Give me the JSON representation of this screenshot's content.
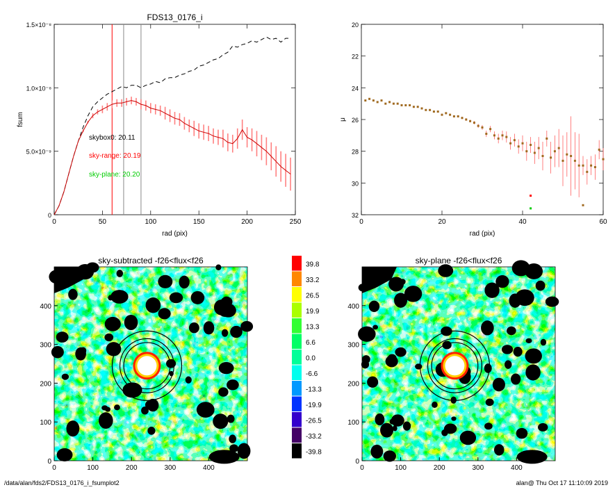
{
  "chart_data": [
    {
      "type": "line",
      "title": "FDS13_0176_i",
      "xlabel": "rad (pix)",
      "ylabel": "fsum",
      "xlim": [
        0,
        250
      ],
      "ylim": [
        0,
        1.5e-08
      ],
      "x_ticks": [
        0,
        50,
        100,
        150,
        200,
        250
      ],
      "y_ticks": [
        {
          "value": 0,
          "label": "0"
        },
        {
          "value": 5e-09,
          "label": "5.0×10⁻⁹"
        },
        {
          "value": 1e-08,
          "label": "1.0×10⁻⁸"
        },
        {
          "value": 1.5e-08,
          "label": "1.5×10⁻⁸"
        }
      ],
      "vlines": [
        {
          "x": 60,
          "color": "#ff0000"
        },
        {
          "x": 72,
          "color": "#888888"
        },
        {
          "x": 90,
          "color": "#888888"
        }
      ],
      "annotations": [
        {
          "text": "skybox0: 20.11",
          "color": "#000000",
          "x": 36,
          "y": 5.9e-09
        },
        {
          "text": "sky-range: 20.19",
          "color": "#ff0000",
          "x": 36,
          "y": 4.5e-09
        },
        {
          "text": "sky-plane: 20.20",
          "color": "#00cc00",
          "x": 36,
          "y": 3e-09
        }
      ],
      "series": [
        {
          "style": "dashed",
          "color": "#000000",
          "x": [
            0,
            5,
            10,
            15,
            20,
            25,
            30,
            35,
            40,
            45,
            50,
            55,
            60,
            65,
            70,
            75,
            80,
            85,
            90,
            95,
            100,
            105,
            110,
            115,
            120,
            125,
            130,
            135,
            140,
            145,
            150,
            155,
            160,
            165,
            170,
            175,
            180,
            185,
            190,
            195,
            200,
            205,
            210,
            215,
            220,
            225,
            230,
            235,
            240,
            245
          ],
          "y": [
            0,
            7e-10,
            1.8e-09,
            3.2e-09,
            4.6e-09,
            5.8e-09,
            6.9e-09,
            7.8e-09,
            8.5e-09,
            8.9e-09,
            9.2e-09,
            9.5e-09,
            9.7e-09,
            9.9e-09,
            1.01e-08,
            1e-08,
            1.02e-08,
            1.02e-08,
            1e-08,
            1.02e-08,
            1.03e-08,
            1.05e-08,
            1.04e-08,
            1.07e-08,
            1.08e-08,
            1.08e-08,
            1.1e-08,
            1.11e-08,
            1.13e-08,
            1.14e-08,
            1.17e-08,
            1.18e-08,
            1.2e-08,
            1.22e-08,
            1.23e-08,
            1.26e-08,
            1.28e-08,
            1.33e-08,
            1.32e-08,
            1.34e-08,
            1.35e-08,
            1.37e-08,
            1.36e-08,
            1.38e-08,
            1.4e-08,
            1.38e-08,
            1.39e-08,
            1.36e-08,
            1.39e-08,
            1.39e-08
          ]
        },
        {
          "style": "solid",
          "color": "#cc0000",
          "errorbars": true,
          "error_color": "#ff8080",
          "x": [
            0,
            5,
            10,
            15,
            20,
            25,
            30,
            35,
            40,
            45,
            50,
            55,
            60,
            65,
            70,
            75,
            80,
            85,
            90,
            95,
            100,
            105,
            110,
            115,
            120,
            125,
            130,
            135,
            140,
            145,
            150,
            155,
            160,
            165,
            170,
            175,
            180,
            185,
            190,
            195,
            200,
            205,
            210,
            215,
            220,
            225,
            230,
            235,
            240,
            245
          ],
          "y": [
            0,
            7e-10,
            1.8e-09,
            3.2e-09,
            4.6e-09,
            5.8e-09,
            6.6e-09,
            7.3e-09,
            7.8e-09,
            8.1e-09,
            8.3e-09,
            8.5e-09,
            8.7e-09,
            8.8e-09,
            8.8e-09,
            8.9e-09,
            9e-09,
            8.9e-09,
            8.7e-09,
            8.6e-09,
            8.4e-09,
            8.3e-09,
            8.2e-09,
            8e-09,
            7.8e-09,
            7.6e-09,
            7.5e-09,
            7.2e-09,
            7e-09,
            6.8e-09,
            6.6e-09,
            6.5e-09,
            6.4e-09,
            6.2e-09,
            6.1e-09,
            6e-09,
            5.7e-09,
            5.6e-09,
            6e-09,
            6.7e-09,
            6.1e-09,
            5.9e-09,
            5.6e-09,
            5.3e-09,
            5e-09,
            4.6e-09,
            4.2e-09,
            3.8e-09,
            3.5e-09,
            3.2e-09
          ],
          "err": [
            0,
            0,
            0,
            0,
            0,
            0,
            1e-10,
            1e-10,
            2e-10,
            2e-10,
            3e-10,
            3e-10,
            3e-10,
            3e-10,
            3e-10,
            3e-10,
            3e-10,
            3e-10,
            4e-10,
            4e-10,
            4e-10,
            4e-10,
            4e-10,
            5e-10,
            5e-10,
            5e-10,
            5e-10,
            5e-10,
            5e-10,
            6e-10,
            6e-10,
            6e-10,
            6e-10,
            6e-10,
            6e-10,
            7e-10,
            7e-10,
            7e-10,
            8e-10,
            8e-10,
            8e-10,
            9e-10,
            1e-09,
            1e-09,
            1.1e-09,
            1.1e-09,
            1.2e-09,
            1.2e-09,
            1.3e-09,
            1.3e-09
          ]
        }
      ]
    },
    {
      "type": "scatter",
      "title": "",
      "xlabel": "rad (pix)",
      "ylabel": "μ",
      "xlim": [
        0,
        60
      ],
      "ylim": [
        32,
        20
      ],
      "x_ticks": [
        0,
        20,
        40,
        60
      ],
      "y_ticks": [
        20,
        22,
        24,
        26,
        28,
        30,
        32
      ],
      "points": {
        "x": [
          1,
          2,
          3,
          4,
          5,
          6,
          7,
          8,
          9,
          10,
          11,
          12,
          13,
          14,
          15,
          16,
          17,
          18,
          19,
          20,
          21,
          22,
          23,
          24,
          25,
          26,
          27,
          28,
          29,
          30,
          31,
          32,
          33,
          34,
          35,
          36,
          37,
          38,
          39,
          40,
          41,
          42,
          43,
          44,
          45,
          46,
          47,
          48,
          49,
          50,
          51,
          52,
          53,
          54,
          55,
          56,
          57,
          58,
          59,
          60
        ],
        "y": [
          24.8,
          24.7,
          24.8,
          24.9,
          24.8,
          25.0,
          24.9,
          25.0,
          25.0,
          25.1,
          25.1,
          25.1,
          25.2,
          25.2,
          25.3,
          25.4,
          25.4,
          25.5,
          25.5,
          25.7,
          25.6,
          25.7,
          25.8,
          25.8,
          25.9,
          26.0,
          26.1,
          26.2,
          26.4,
          26.5,
          26.9,
          26.6,
          27.0,
          27.2,
          27.0,
          27.1,
          27.5,
          27.3,
          27.7,
          27.5,
          28.0,
          27.6,
          28.1,
          27.8,
          28.3,
          27.2,
          28.4,
          28.0,
          27.8,
          28.6,
          28.2,
          28.3,
          28.6,
          28.9,
          28.9,
          29.3,
          28.9,
          29.0,
          27.9,
          28.5
        ],
        "err": [
          0.05,
          0.05,
          0.05,
          0.05,
          0.05,
          0.05,
          0.05,
          0.05,
          0.05,
          0.05,
          0.05,
          0.05,
          0.05,
          0.05,
          0.05,
          0.05,
          0.05,
          0.05,
          0.06,
          0.06,
          0.06,
          0.06,
          0.06,
          0.07,
          0.07,
          0.08,
          0.08,
          0.1,
          0.12,
          0.15,
          0.2,
          0.2,
          0.25,
          0.3,
          0.3,
          0.35,
          0.4,
          0.4,
          0.45,
          0.5,
          0.6,
          0.5,
          0.7,
          0.7,
          0.9,
          0.5,
          1.0,
          1.0,
          1.2,
          1.6,
          1.4,
          2.5,
          1.8,
          2.0,
          0.6,
          0.8,
          0.6,
          0.8,
          0.6,
          0.7
        ],
        "color": "#a06a20",
        "error_color": "#ff6060"
      },
      "extra_points": [
        {
          "x": 42,
          "y": 30.8,
          "color": "#ff0000"
        },
        {
          "x": 42,
          "y": 31.6,
          "color": "#00cc00"
        },
        {
          "x": 55,
          "y": 31.4,
          "color": "#a06a20"
        }
      ]
    },
    {
      "type": "heatmap",
      "title": "sky-subtracted -f26<flux<f26",
      "xlim": [
        0,
        500
      ],
      "ylim": [
        0,
        500
      ],
      "x_ticks": [
        0,
        100,
        200,
        300,
        400
      ],
      "y_ticks": [
        0,
        100,
        200,
        300,
        400
      ],
      "center": [
        240,
        245
      ],
      "rings": [
        60,
        70,
        90
      ]
    },
    {
      "type": "heatmap",
      "title": "sky-plane -f26<flux<f26",
      "xlim": [
        0,
        500
      ],
      "ylim": [
        0,
        500
      ],
      "x_ticks": [
        0,
        100,
        200,
        300,
        400
      ],
      "y_ticks": [
        0,
        100,
        200,
        300,
        400
      ],
      "center": [
        240,
        245
      ],
      "rings": [
        60,
        70,
        90
      ]
    }
  ],
  "colorbar": {
    "labels": [
      "39.8",
      "33.2",
      "26.5",
      "19.9",
      "13.3",
      "6.6",
      "0.0",
      "-6.6",
      "-13.3",
      "-19.9",
      "-26.5",
      "-33.2",
      "-39.8"
    ],
    "colors": [
      "#ff0000",
      "#ff8800",
      "#ffff00",
      "#aaff00",
      "#33ff33",
      "#00ff66",
      "#00ff99",
      "#00ffee",
      "#0099ff",
      "#0033ff",
      "#3300cc",
      "#440066",
      "#000000"
    ]
  },
  "footer": {
    "path": "/data/alan/fds2/FDS13_0176_i_fsumplot2",
    "user_date": "alan@  Thu Oct 17 11:10:09 2019"
  }
}
